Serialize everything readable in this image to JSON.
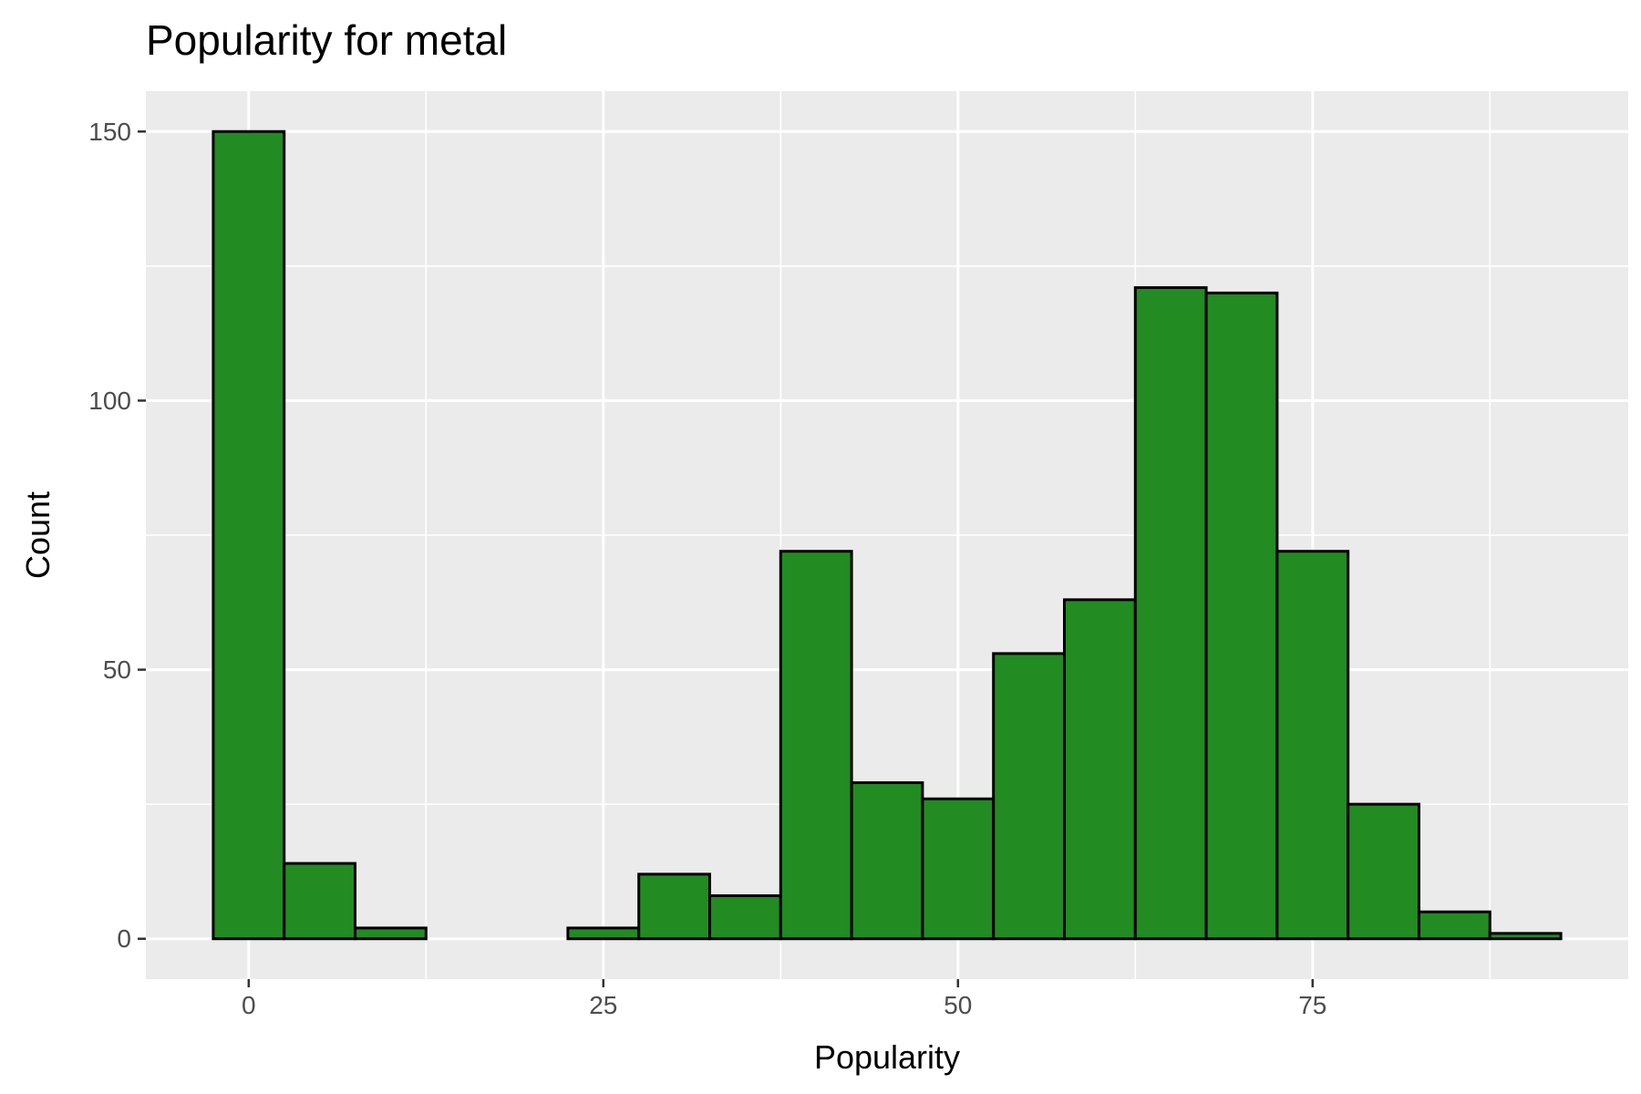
{
  "chart_data": {
    "type": "bar",
    "title": "Popularity for metal",
    "xlabel": "Popularity",
    "ylabel": "Count",
    "bin_width": 5,
    "bins": [
      {
        "x0": -2.5,
        "x1": 2.5,
        "count": 150
      },
      {
        "x0": 2.5,
        "x1": 7.5,
        "count": 14
      },
      {
        "x0": 7.5,
        "x1": 12.5,
        "count": 2
      },
      {
        "x0": 12.5,
        "x1": 17.5,
        "count": 0
      },
      {
        "x0": 17.5,
        "x1": 22.5,
        "count": 0
      },
      {
        "x0": 22.5,
        "x1": 27.5,
        "count": 2
      },
      {
        "x0": 27.5,
        "x1": 32.5,
        "count": 12
      },
      {
        "x0": 32.5,
        "x1": 37.5,
        "count": 8
      },
      {
        "x0": 37.5,
        "x1": 42.5,
        "count": 72
      },
      {
        "x0": 42.5,
        "x1": 47.5,
        "count": 29
      },
      {
        "x0": 47.5,
        "x1": 52.5,
        "count": 26
      },
      {
        "x0": 52.5,
        "x1": 57.5,
        "count": 53
      },
      {
        "x0": 57.5,
        "x1": 62.5,
        "count": 63
      },
      {
        "x0": 62.5,
        "x1": 67.5,
        "count": 121
      },
      {
        "x0": 67.5,
        "x1": 72.5,
        "count": 120
      },
      {
        "x0": 72.5,
        "x1": 77.5,
        "count": 72
      },
      {
        "x0": 77.5,
        "x1": 82.5,
        "count": 25
      },
      {
        "x0": 82.5,
        "x1": 87.5,
        "count": 5
      },
      {
        "x0": 87.5,
        "x1": 92.5,
        "count": 1
      }
    ],
    "xlim": [
      -7.25,
      97.25
    ],
    "ylim": [
      -7.5,
      157.5
    ],
    "x_ticks": [
      0,
      25,
      50,
      75
    ],
    "x_tick_labels": [
      "0",
      "25",
      "50",
      "75"
    ],
    "y_ticks": [
      0,
      50,
      100,
      150
    ],
    "y_tick_labels": [
      "0",
      "50",
      "100",
      "150"
    ],
    "grid": true,
    "colors": {
      "bar_fill": "#228B22",
      "bar_outline": "#000000",
      "panel_background": "#EBEBEB",
      "grid": "#FFFFFF",
      "tick_label": "#4D4D4D"
    }
  }
}
